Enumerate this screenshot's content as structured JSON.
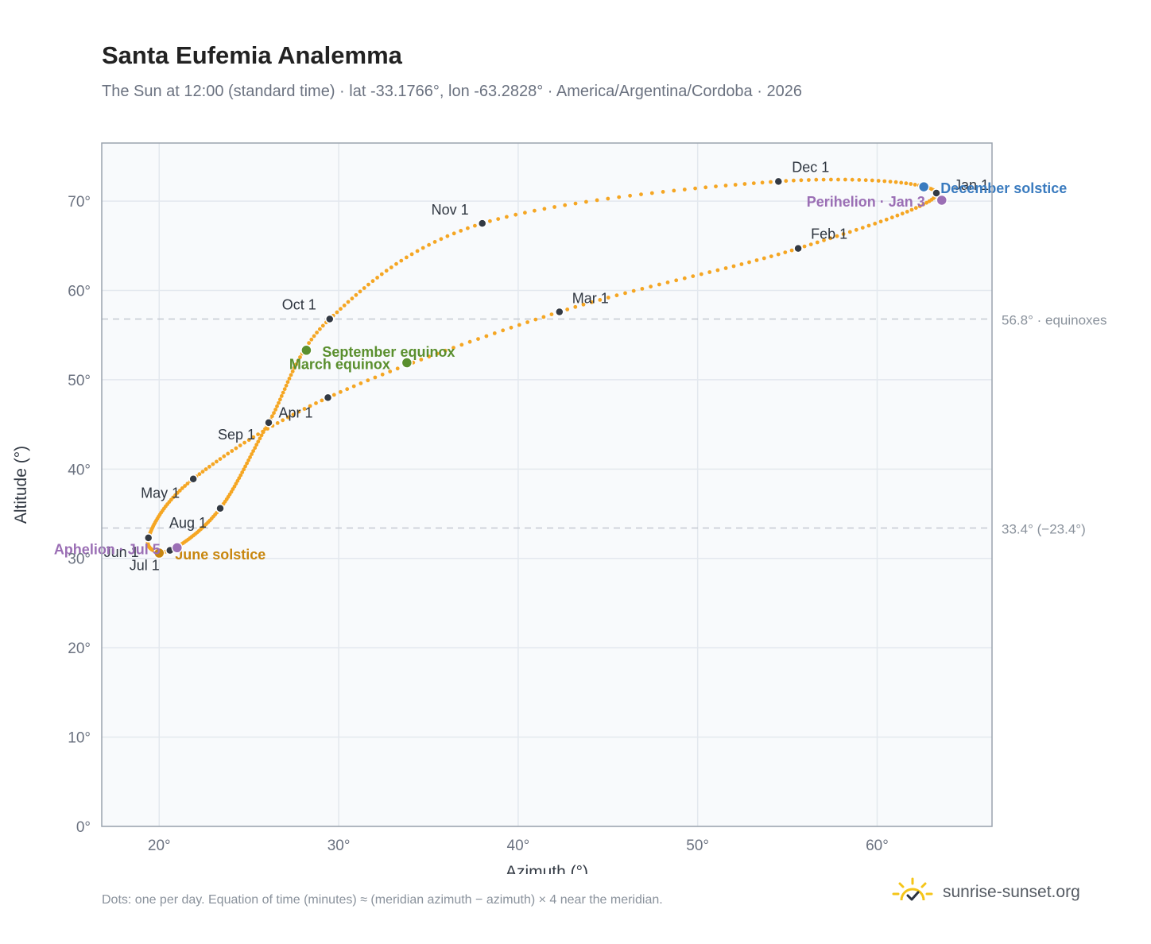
{
  "header": {
    "title": "Santa Eufemia Analemma",
    "subtitle": "The Sun at 12:00 (standard time) · lat -33.1766°, lon -63.2828° · America/Argentina/Cordoba · 2026"
  },
  "footer": {
    "note": "Dots: one per day. Equation of time (minutes) ≈ (meridian azimuth − azimuth) × 4 near the meridian.",
    "brand": "sunrise-sunset.org",
    "brand_icon": "sun-check-icon"
  },
  "colors": {
    "curve": "#f5a623",
    "month_dot": "#333a44",
    "equinox": "#5a8f2e",
    "june_solstice": "#c8860e",
    "december_solstice": "#3a7bbf",
    "apsis": "#9b6fb5",
    "refline": "#c4c9d1",
    "plot_bg": "#f8fafc",
    "frame": "#9aa3ae"
  },
  "chart_data": {
    "type": "scatter",
    "xlabel": "Azimuth (°)",
    "ylabel": "Altitude (°)",
    "xlim": [
      16.8,
      66.4
    ],
    "ylim": [
      0,
      76.5
    ],
    "xticks": [
      20,
      30,
      40,
      50,
      60
    ],
    "yticks": [
      0,
      10,
      20,
      30,
      40,
      50,
      60,
      70
    ],
    "tick_suffix": "°",
    "grid": true,
    "month_points": [
      {
        "label": "Jan 1",
        "x": 63.3,
        "y": 70.9
      },
      {
        "label": "Feb 1",
        "x": 55.6,
        "y": 64.7
      },
      {
        "label": "Mar 1",
        "x": 42.3,
        "y": 57.6
      },
      {
        "label": "Apr 1",
        "x": 29.4,
        "y": 48.0
      },
      {
        "label": "May 1",
        "x": 21.9,
        "y": 38.9
      },
      {
        "label": "Jun 1",
        "x": 19.4,
        "y": 32.3
      },
      {
        "label": "Jul 1",
        "x": 20.6,
        "y": 30.9
      },
      {
        "label": "Aug 1",
        "x": 23.4,
        "y": 35.6
      },
      {
        "label": "Sep 1",
        "x": 26.1,
        "y": 45.2
      },
      {
        "label": "Oct 1",
        "x": 29.5,
        "y": 56.8
      },
      {
        "label": "Nov 1",
        "x": 38.0,
        "y": 67.5
      },
      {
        "label": "Dec 1",
        "x": 54.5,
        "y": 72.2
      }
    ],
    "events": [
      {
        "label": "March equinox",
        "x": 33.8,
        "y": 51.9
      },
      {
        "label": "June solstice",
        "x": 20.0,
        "y": 30.6
      },
      {
        "label": "September equinox",
        "x": 28.2,
        "y": 53.3
      },
      {
        "label": "December solstice",
        "x": 62.6,
        "y": 71.6
      },
      {
        "label": "Perihelion · Jan 3",
        "x": 63.6,
        "y": 70.1
      },
      {
        "label": "Aphelion · Jul 5",
        "x": 21.0,
        "y": 31.2
      }
    ],
    "reference_lines": [
      {
        "y": 56.8,
        "label": "56.8° · equinoxes"
      },
      {
        "y": 33.4,
        "label": "33.4° (−23.4°)"
      }
    ]
  }
}
